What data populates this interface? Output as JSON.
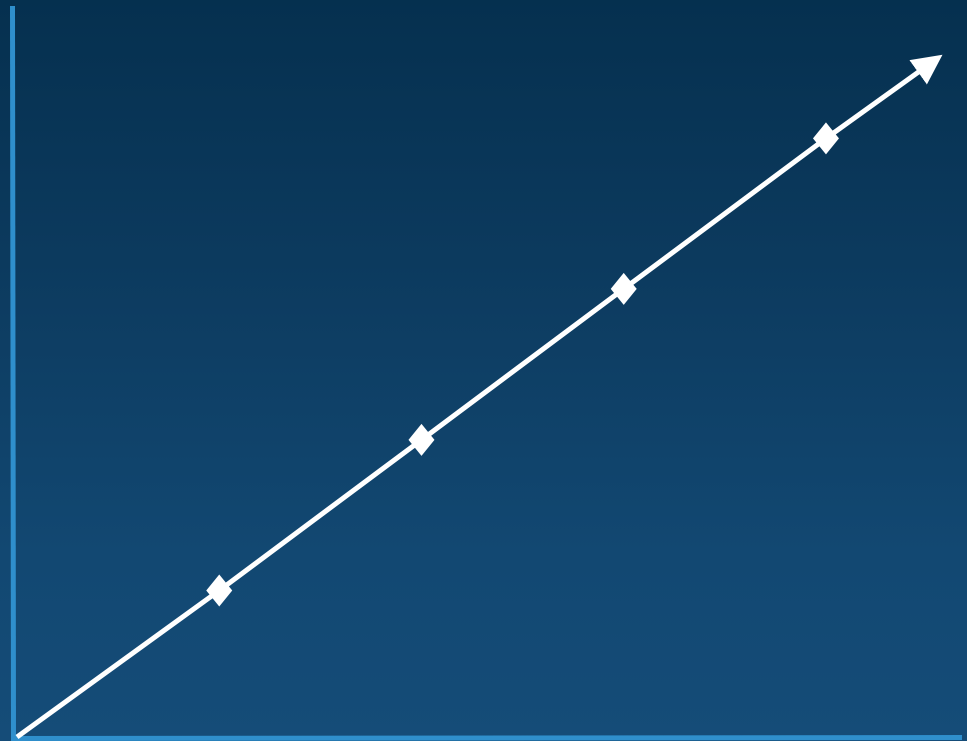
{
  "chart_data": {
    "type": "line",
    "title": "",
    "xlabel": "",
    "ylabel": "",
    "grid": false,
    "legend": "none",
    "x": [
      0,
      1,
      2,
      3,
      4
    ],
    "series": [
      {
        "values": [
          0,
          1,
          2.028,
          3.058,
          4.085
        ]
      }
    ],
    "line_end_arrow": {
      "x": 4.54,
      "y": 4.62
    },
    "xlim": [
      0,
      5.8
    ],
    "ylim": [
      0,
      4.9
    ],
    "axes_visible": true,
    "tick_labels_visible": false,
    "colors": {
      "axis": "#2f8fcc",
      "line": "#ffffff",
      "marker": "#ffffff"
    }
  }
}
